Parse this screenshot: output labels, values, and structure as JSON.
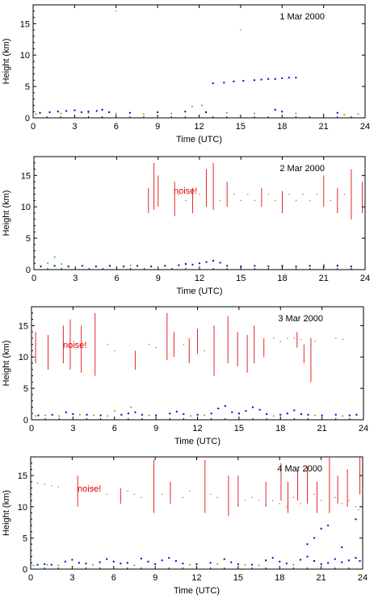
{
  "chart_data": [
    {
      "type": "scatter",
      "title": "",
      "date": "1 Mar 2000",
      "xlabel": "Time (UTC)",
      "ylabel": "Height (km)",
      "xlim": [
        0,
        24
      ],
      "ylim": [
        0,
        18
      ],
      "xticks": [
        "0",
        "3",
        "6",
        "9",
        "12",
        "15",
        "18",
        "21",
        "24"
      ],
      "yticks": [
        "0",
        "5",
        "10",
        "15"
      ],
      "annotation": "",
      "colors": {
        "red": "#e00000",
        "blue": "#0000cc",
        "green": "#00bb00"
      },
      "blue_points": [
        [
          0.5,
          0.8
        ],
        [
          1.2,
          0.9
        ],
        [
          1.8,
          1.0
        ],
        [
          2.4,
          1.1
        ],
        [
          3.0,
          1.2
        ],
        [
          3.5,
          0.9
        ],
        [
          4.0,
          1.0
        ],
        [
          4.6,
          1.1
        ],
        [
          5.0,
          1.3
        ],
        [
          5.5,
          0.9
        ],
        [
          7.0,
          0.8
        ],
        [
          9.0,
          0.9
        ],
        [
          11.0,
          1.0
        ],
        [
          12.5,
          0.9
        ],
        [
          13.0,
          5.5
        ],
        [
          13.8,
          5.6
        ],
        [
          14.5,
          5.8
        ],
        [
          15.2,
          5.9
        ],
        [
          16.0,
          6.0
        ],
        [
          16.5,
          6.1
        ],
        [
          17.0,
          6.2
        ],
        [
          17.5,
          6.2
        ],
        [
          18.0,
          6.3
        ],
        [
          18.5,
          6.4
        ],
        [
          19.0,
          6.4
        ],
        [
          17.5,
          1.3
        ],
        [
          18.0,
          1.0
        ],
        [
          22.0,
          0.8
        ]
      ],
      "green_points": [
        [
          0.2,
          0.6
        ],
        [
          2.0,
          0.7
        ],
        [
          4.0,
          0.8
        ],
        [
          6.0,
          0.7
        ],
        [
          8.0,
          0.6
        ],
        [
          10.0,
          0.7
        ],
        [
          11.5,
          1.8
        ],
        [
          12.2,
          2.0
        ],
        [
          14.0,
          0.8
        ],
        [
          16.0,
          0.7
        ],
        [
          19.0,
          0.7
        ],
        [
          21.0,
          0.6
        ],
        [
          22.5,
          0.5
        ],
        [
          23.5,
          0.6
        ]
      ],
      "red_columns": [],
      "red_points": [
        [
          6.0,
          17.0
        ],
        [
          15.0,
          14.0
        ]
      ]
    },
    {
      "type": "scatter",
      "title": "",
      "date": "2 Mar 2000",
      "xlabel": "Time (UTC)",
      "ylabel": "Height (km)",
      "xlim": [
        0,
        24
      ],
      "ylim": [
        0,
        18
      ],
      "xticks": [
        "0",
        "3",
        "6",
        "9",
        "12",
        "15",
        "18",
        "21",
        "24"
      ],
      "yticks": [
        "0",
        "5",
        "10",
        "15"
      ],
      "annotation": "noise!",
      "colors": {
        "red": "#e00000",
        "blue": "#0000cc",
        "green": "#00bb00"
      },
      "blue_points": [
        [
          0.5,
          0.5
        ],
        [
          1.5,
          0.6
        ],
        [
          2.5,
          0.5
        ],
        [
          3.5,
          0.6
        ],
        [
          4.5,
          0.5
        ],
        [
          5.5,
          0.6
        ],
        [
          6.5,
          0.5
        ],
        [
          7.5,
          0.6
        ],
        [
          8.5,
          0.5
        ],
        [
          9.5,
          0.6
        ],
        [
          10.5,
          0.7
        ],
        [
          11.0,
          0.9
        ],
        [
          11.5,
          0.8
        ],
        [
          12.0,
          1.0
        ],
        [
          12.5,
          1.2
        ],
        [
          13.0,
          1.4
        ],
        [
          13.5,
          1.1
        ],
        [
          14.0,
          0.6
        ],
        [
          15.0,
          0.5
        ],
        [
          16.0,
          0.6
        ],
        [
          17.0,
          0.5
        ],
        [
          18.0,
          0.6
        ],
        [
          19.0,
          0.5
        ],
        [
          20.0,
          0.6
        ],
        [
          21.0,
          0.5
        ],
        [
          22.0,
          0.6
        ],
        [
          23.0,
          0.5
        ]
      ],
      "green_points": [
        [
          1.0,
          1.0
        ],
        [
          1.5,
          2.0
        ],
        [
          2.0,
          0.9
        ],
        [
          7.0,
          0.7
        ],
        [
          21.0,
          0.8
        ],
        [
          22.0,
          0.7
        ]
      ],
      "red_columns": [
        [
          8.3,
          9.0,
          13.0
        ],
        [
          8.7,
          9.5,
          17.0
        ],
        [
          9.0,
          10.0,
          15.0
        ],
        [
          10.2,
          8.5,
          14.0
        ],
        [
          11.5,
          9.0,
          13.0
        ],
        [
          12.5,
          10.0,
          16.0
        ],
        [
          13.0,
          9.5,
          17.0
        ],
        [
          14.0,
          10.0,
          14.0
        ],
        [
          16.5,
          10.0,
          13.0
        ],
        [
          18.0,
          9.0,
          12.5
        ],
        [
          21.0,
          10.0,
          15.0
        ],
        [
          22.0,
          9.0,
          13.0
        ],
        [
          23.0,
          8.0,
          16.0
        ],
        [
          23.8,
          9.0,
          14.0
        ]
      ],
      "red_points": [
        [
          10.5,
          12.0
        ],
        [
          11.0,
          11.0
        ],
        [
          12.0,
          12.0
        ],
        [
          13.5,
          11.0
        ],
        [
          14.5,
          12.0
        ],
        [
          15.0,
          11.0
        ],
        [
          15.5,
          12.0
        ],
        [
          16.0,
          11.0
        ],
        [
          17.0,
          12.0
        ],
        [
          17.5,
          11.0
        ],
        [
          18.5,
          12.0
        ],
        [
          19.0,
          11.0
        ],
        [
          19.5,
          12.0
        ],
        [
          20.0,
          11.0
        ],
        [
          20.5,
          12.0
        ],
        [
          21.5,
          11.0
        ],
        [
          22.5,
          12.0
        ]
      ]
    },
    {
      "type": "scatter",
      "title": "",
      "date": "3 Mar 2000",
      "xlabel": "Time (UTC)",
      "ylabel": "Height (km)",
      "xlim": [
        0,
        24
      ],
      "ylim": [
        0,
        18
      ],
      "xticks": [
        "0",
        "3",
        "6",
        "9",
        "12",
        "15",
        "18",
        "21",
        "24"
      ],
      "yticks": [
        "0",
        "5",
        "10",
        "15"
      ],
      "annotation": "noise!",
      "colors": {
        "red": "#e00000",
        "blue": "#0000cc",
        "green": "#00bb00"
      },
      "blue_points": [
        [
          0.5,
          0.7
        ],
        [
          1.5,
          0.8
        ],
        [
          2.5,
          1.2
        ],
        [
          3.0,
          0.9
        ],
        [
          4.0,
          0.8
        ],
        [
          5.0,
          0.7
        ],
        [
          6.5,
          0.8
        ],
        [
          7.0,
          1.0
        ],
        [
          7.5,
          1.2
        ],
        [
          8.0,
          0.8
        ],
        [
          9.0,
          0.7
        ],
        [
          10.0,
          1.0
        ],
        [
          10.5,
          1.3
        ],
        [
          11.0,
          0.9
        ],
        [
          12.0,
          0.8
        ],
        [
          13.0,
          1.0
        ],
        [
          13.5,
          1.8
        ],
        [
          14.0,
          2.2
        ],
        [
          14.5,
          1.2
        ],
        [
          15.0,
          1.0
        ],
        [
          15.5,
          1.4
        ],
        [
          16.0,
          2.0
        ],
        [
          16.5,
          1.6
        ],
        [
          17.0,
          0.9
        ],
        [
          18.0,
          0.8
        ],
        [
          18.5,
          1.0
        ],
        [
          19.0,
          1.5
        ],
        [
          19.5,
          0.9
        ],
        [
          20.0,
          0.8
        ],
        [
          21.0,
          0.7
        ],
        [
          22.0,
          0.8
        ],
        [
          23.0,
          0.7
        ],
        [
          23.5,
          0.8
        ]
      ],
      "green_points": [
        [
          0.3,
          0.6
        ],
        [
          1.0,
          0.7
        ],
        [
          2.0,
          0.6
        ],
        [
          3.5,
          0.8
        ],
        [
          4.5,
          0.7
        ],
        [
          5.5,
          0.6
        ],
        [
          6.0,
          1.4
        ],
        [
          7.2,
          2.0
        ],
        [
          8.5,
          0.7
        ],
        [
          11.5,
          0.6
        ],
        [
          12.5,
          0.7
        ],
        [
          17.5,
          0.6
        ],
        [
          20.5,
          0.7
        ],
        [
          22.5,
          0.6
        ]
      ],
      "red_columns": [
        [
          0.3,
          9.0,
          14.0
        ],
        [
          1.2,
          8.0,
          13.5
        ],
        [
          2.3,
          9.0,
          15.0
        ],
        [
          2.8,
          8.0,
          16.0
        ],
        [
          3.6,
          7.5,
          15.0
        ],
        [
          4.6,
          7.0,
          17.0
        ],
        [
          7.5,
          8.0,
          11.0
        ],
        [
          9.8,
          9.5,
          17.0
        ],
        [
          10.3,
          10.0,
          14.0
        ],
        [
          11.4,
          9.0,
          13.0
        ],
        [
          12.0,
          10.5,
          14.5
        ],
        [
          13.2,
          7.0,
          15.0
        ],
        [
          14.2,
          9.0,
          16.5
        ],
        [
          14.9,
          8.5,
          14.0
        ],
        [
          15.6,
          7.5,
          13.5
        ],
        [
          16.1,
          9.0,
          15.0
        ],
        [
          16.8,
          10.0,
          13.0
        ],
        [
          19.2,
          11.5,
          14.0
        ],
        [
          19.7,
          9.0,
          12.0
        ],
        [
          20.2,
          6.0,
          13.0
        ]
      ],
      "red_points": [
        [
          5.5,
          12.0
        ],
        [
          6.0,
          11.0
        ],
        [
          8.5,
          12.0
        ],
        [
          9.0,
          11.5
        ],
        [
          11.0,
          12.0
        ],
        [
          12.5,
          11.0
        ],
        [
          17.5,
          13.0
        ],
        [
          18.0,
          12.5
        ],
        [
          18.5,
          13.0
        ],
        [
          19.0,
          13.0
        ],
        [
          19.5,
          12.8
        ],
        [
          20.5,
          12.5
        ],
        [
          22.0,
          13.0
        ],
        [
          22.5,
          12.8
        ]
      ]
    },
    {
      "type": "scatter",
      "title": "",
      "date": "4 Mar 2000",
      "xlabel": "Time (UTC)",
      "ylabel": "Height (km)",
      "xlim": [
        0,
        24
      ],
      "ylim": [
        0,
        18
      ],
      "xticks": [
        "0",
        "3",
        "6",
        "9",
        "12",
        "15",
        "18",
        "21",
        "24"
      ],
      "yticks": [
        "0",
        "5",
        "10",
        "15"
      ],
      "annotation": "noise!",
      "colors": {
        "red": "#e00000",
        "blue": "#0000cc",
        "green": "#00bb00"
      },
      "blue_points": [
        [
          0.5,
          0.7
        ],
        [
          1.0,
          0.8
        ],
        [
          1.5,
          0.7
        ],
        [
          2.5,
          1.2
        ],
        [
          3.0,
          1.5
        ],
        [
          3.5,
          1.0
        ],
        [
          4.0,
          0.9
        ],
        [
          5.0,
          1.1
        ],
        [
          5.5,
          1.6
        ],
        [
          6.0,
          1.2
        ],
        [
          6.5,
          0.9
        ],
        [
          7.0,
          1.0
        ],
        [
          8.0,
          1.7
        ],
        [
          8.5,
          1.2
        ],
        [
          9.0,
          0.8
        ],
        [
          9.5,
          1.4
        ],
        [
          10.0,
          1.8
        ],
        [
          10.5,
          1.3
        ],
        [
          11.0,
          0.9
        ],
        [
          12.0,
          0.8
        ],
        [
          13.0,
          1.0
        ],
        [
          14.0,
          1.6
        ],
        [
          14.5,
          1.1
        ],
        [
          15.0,
          0.8
        ],
        [
          16.0,
          0.7
        ],
        [
          17.0,
          1.4
        ],
        [
          17.5,
          1.8
        ],
        [
          18.0,
          1.2
        ],
        [
          18.5,
          0.9
        ],
        [
          19.5,
          1.5
        ],
        [
          20.0,
          2.0
        ],
        [
          20.5,
          1.3
        ],
        [
          21.0,
          0.8
        ],
        [
          21.5,
          1.0
        ],
        [
          22.0,
          1.6
        ],
        [
          22.5,
          1.1
        ],
        [
          23.0,
          1.4
        ],
        [
          23.5,
          1.8
        ],
        [
          23.8,
          1.3
        ],
        [
          20.5,
          5.0
        ],
        [
          21.0,
          6.5
        ],
        [
          21.5,
          7.0
        ],
        [
          20.0,
          4.0
        ],
        [
          22.5,
          3.5
        ],
        [
          23.5,
          8.0
        ]
      ],
      "green_points": [
        [
          0.2,
          0.6
        ],
        [
          1.2,
          0.7
        ],
        [
          2.0,
          0.6
        ],
        [
          4.5,
          0.7
        ],
        [
          7.5,
          0.6
        ],
        [
          11.5,
          0.7
        ],
        [
          13.5,
          0.8
        ],
        [
          15.5,
          0.7
        ],
        [
          16.5,
          0.6
        ],
        [
          19.0,
          0.7
        ]
      ],
      "red_columns": [
        [
          3.4,
          10.0,
          15.0
        ],
        [
          6.5,
          10.5,
          13.0
        ],
        [
          8.9,
          9.0,
          17.5
        ],
        [
          10.1,
          10.5,
          14.0
        ],
        [
          12.6,
          9.0,
          17.5
        ],
        [
          14.3,
          8.5,
          15.0
        ],
        [
          15.0,
          10.0,
          15.0
        ],
        [
          17.0,
          10.0,
          14.0
        ],
        [
          18.1,
          11.0,
          17.0
        ],
        [
          18.6,
          9.0,
          14.0
        ],
        [
          19.3,
          11.0,
          16.0
        ],
        [
          20.0,
          10.5,
          16.5
        ],
        [
          20.7,
          9.0,
          14.0
        ],
        [
          21.6,
          9.0,
          18.0
        ],
        [
          22.2,
          10.5,
          15.0
        ],
        [
          22.9,
          10.0,
          16.0
        ],
        [
          23.8,
          12.0,
          18.0
        ]
      ],
      "red_points": [
        [
          0.5,
          13.8
        ],
        [
          1.0,
          13.6
        ],
        [
          1.5,
          13.4
        ],
        [
          2.0,
          13.2
        ],
        [
          4.5,
          13.0
        ],
        [
          5.0,
          12.5
        ],
        [
          5.5,
          12.0
        ],
        [
          7.0,
          12.5
        ],
        [
          7.5,
          12.0
        ],
        [
          8.0,
          11.5
        ],
        [
          9.5,
          12.0
        ],
        [
          11.0,
          11.5
        ],
        [
          11.5,
          12.5
        ],
        [
          13.0,
          12.0
        ],
        [
          13.5,
          11.5
        ],
        [
          15.5,
          11.0
        ],
        [
          16.0,
          11.5
        ],
        [
          16.5,
          11.0
        ],
        [
          17.5,
          11.0
        ],
        [
          18.0,
          10.5
        ],
        [
          18.5,
          10.0
        ],
        [
          19.0,
          11.5
        ],
        [
          19.5,
          10.5
        ],
        [
          20.5,
          12.0
        ],
        [
          21.0,
          11.0
        ],
        [
          22.0,
          11.5
        ],
        [
          22.5,
          10.5
        ],
        [
          23.0,
          11.0
        ],
        [
          23.5,
          10.0
        ],
        [
          23.7,
          9.5
        ]
      ]
    }
  ]
}
